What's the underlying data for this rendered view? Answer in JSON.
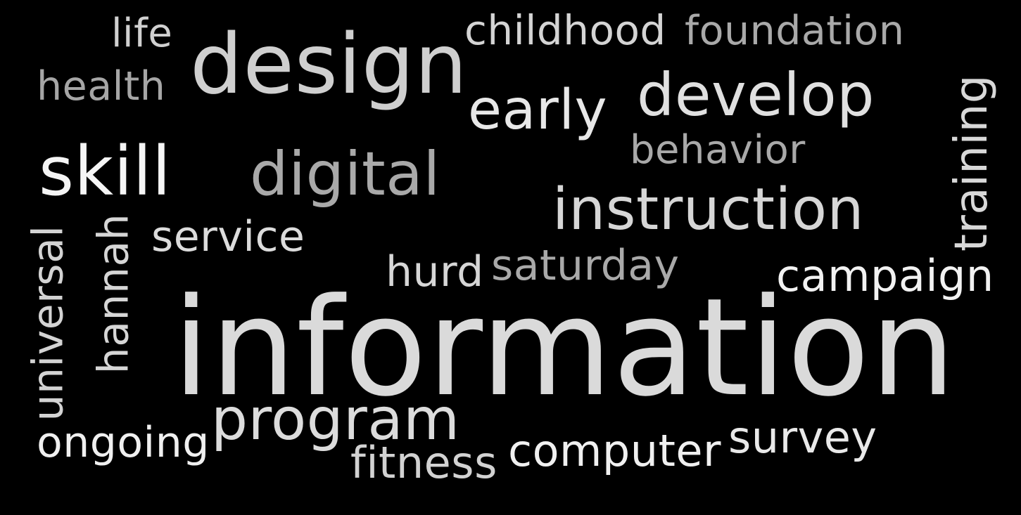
{
  "background": "#000000",
  "words": [
    {
      "key": "life",
      "text": "life",
      "color": "#d0d0d0"
    },
    {
      "key": "health",
      "text": "health",
      "color": "#a6a6a6"
    },
    {
      "key": "design",
      "text": "design",
      "color": "#cfcfcf"
    },
    {
      "key": "childhood",
      "text": "childhood",
      "color": "#d4d4d4"
    },
    {
      "key": "foundation",
      "text": "foundation",
      "color": "#a9a9a9"
    },
    {
      "key": "early",
      "text": "early",
      "color": "#e8e8e8"
    },
    {
      "key": "develop",
      "text": "develop",
      "color": "#e0e0e0"
    },
    {
      "key": "behavior",
      "text": "behavior",
      "color": "#a9a9a9"
    },
    {
      "key": "training",
      "text": "training",
      "color": "#d8d8d8"
    },
    {
      "key": "skill",
      "text": "skill",
      "color": "#f5f5f5"
    },
    {
      "key": "digital",
      "text": "digital",
      "color": "#a9a9a9"
    },
    {
      "key": "instruction",
      "text": "instruction",
      "color": "#d6d6d6"
    },
    {
      "key": "universal",
      "text": "universal",
      "color": "#d3d3d3"
    },
    {
      "key": "hannah",
      "text": "hannah",
      "color": "#d6d6d6"
    },
    {
      "key": "service",
      "text": "service",
      "color": "#dcdcdc"
    },
    {
      "key": "hurd",
      "text": "hurd",
      "color": "#d6d6d6"
    },
    {
      "key": "saturday",
      "text": "saturday",
      "color": "#a9a9a9"
    },
    {
      "key": "campaign",
      "text": "campaign",
      "color": "#f2f2f2"
    },
    {
      "key": "information",
      "text": "information",
      "color": "#dadada"
    },
    {
      "key": "program",
      "text": "program",
      "color": "#dcdcdc"
    },
    {
      "key": "ongoing",
      "text": "ongoing",
      "color": "#f0f0f0"
    },
    {
      "key": "fitness",
      "text": "fitness",
      "color": "#d2d2d2"
    },
    {
      "key": "computer",
      "text": "computer",
      "color": "#f0f0f0"
    },
    {
      "key": "survey",
      "text": "survey",
      "color": "#e9e9e9"
    }
  ]
}
